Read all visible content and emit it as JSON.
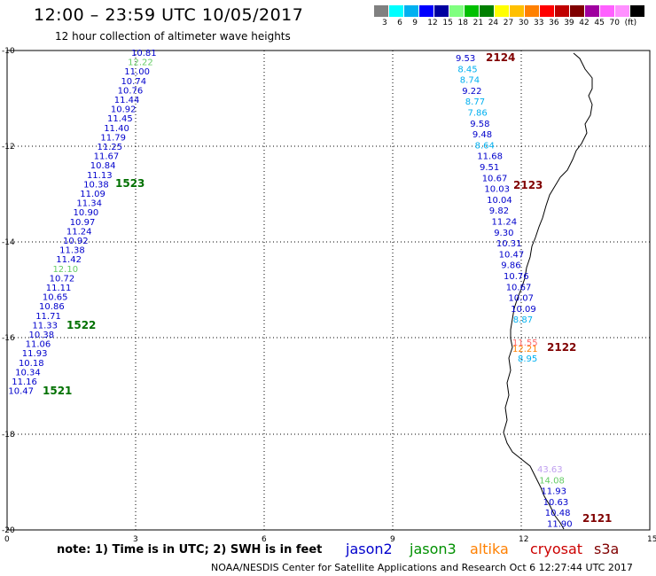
{
  "title": "12:00 – 23:59 UTC 10/05/2017",
  "subtitle": "12 hour collection of altimeter wave heights",
  "colorbar": {
    "colors": [
      "#808080",
      "#00ffff",
      "#00b0f0",
      "#0000ff",
      "#0000a0",
      "#80ff80",
      "#00c000",
      "#008000",
      "#ffff00",
      "#ffc000",
      "#ff8000",
      "#ff0000",
      "#c00000",
      "#800000",
      "#a000a0",
      "#ff60ff",
      "#ff90ff",
      "#000000"
    ],
    "labels": [
      "3",
      "6",
      "9",
      "12",
      "15",
      "18",
      "21",
      "24",
      "27",
      "30",
      "33",
      "36",
      "39",
      "42",
      "45",
      "70",
      "(ft)"
    ]
  },
  "axes": {
    "x_ticks": [
      "0",
      "3",
      "6",
      "9",
      "12",
      "15"
    ],
    "y_ticks": [
      "-10",
      "-12",
      "-14",
      "-16",
      "-18",
      "-20"
    ]
  },
  "track_west": [
    {
      "v": "10.81",
      "c": "#0000cc"
    },
    {
      "v": "12.22",
      "c": "#66cc66"
    },
    {
      "v": "11.00",
      "c": "#0000cc"
    },
    {
      "v": "10.74",
      "c": "#0000cc"
    },
    {
      "v": "10.76",
      "c": "#0000cc"
    },
    {
      "v": "11.44",
      "c": "#0000cc"
    },
    {
      "v": "10.92",
      "c": "#0000cc"
    },
    {
      "v": "11.45",
      "c": "#0000cc"
    },
    {
      "v": "11.40",
      "c": "#0000cc"
    },
    {
      "v": "11.79",
      "c": "#0000cc"
    },
    {
      "v": "11.25",
      "c": "#0000cc"
    },
    {
      "v": "11.67",
      "c": "#0000cc"
    },
    {
      "v": "10.84",
      "c": "#0000cc"
    },
    {
      "v": "11.13",
      "c": "#0000cc"
    },
    {
      "v": "10.38",
      "c": "#0000cc"
    },
    {
      "v": "11.09",
      "c": "#0000cc"
    },
    {
      "v": "11.34",
      "c": "#0000cc"
    },
    {
      "v": "10.90",
      "c": "#0000cc"
    },
    {
      "v": "10.97",
      "c": "#0000cc"
    },
    {
      "v": "11.24",
      "c": "#0000cc"
    },
    {
      "v": "10.92",
      "c": "#0000cc"
    },
    {
      "v": "11.38",
      "c": "#0000cc"
    },
    {
      "v": "11.42",
      "c": "#0000cc"
    },
    {
      "v": "12.10",
      "c": "#66cc66"
    },
    {
      "v": "10.72",
      "c": "#0000cc"
    },
    {
      "v": "11.11",
      "c": "#0000cc"
    },
    {
      "v": "10.65",
      "c": "#0000cc"
    },
    {
      "v": "10.86",
      "c": "#0000cc"
    },
    {
      "v": "11.71",
      "c": "#0000cc"
    },
    {
      "v": "11.33",
      "c": "#0000cc"
    },
    {
      "v": "10.38",
      "c": "#0000cc"
    },
    {
      "v": "11.06",
      "c": "#0000cc"
    },
    {
      "v": "11.93",
      "c": "#0000cc"
    },
    {
      "v": "10.18",
      "c": "#0000cc"
    },
    {
      "v": "10.34",
      "c": "#0000cc"
    },
    {
      "v": "11.16",
      "c": "#0000cc"
    },
    {
      "v": "10.47",
      "c": "#0000cc"
    }
  ],
  "track_east": [
    {
      "v": "9.53",
      "c": "#0000cc"
    },
    {
      "v": "8.45",
      "c": "#00b0f0"
    },
    {
      "v": "8.74",
      "c": "#00b0f0"
    },
    {
      "v": "9.22",
      "c": "#0000cc"
    },
    {
      "v": "8.77",
      "c": "#00b0f0"
    },
    {
      "v": "7.86",
      "c": "#00b0f0"
    },
    {
      "v": "9.58",
      "c": "#0000cc"
    },
    {
      "v": "9.48",
      "c": "#0000cc"
    },
    {
      "v": "8.64",
      "c": "#00b0f0"
    },
    {
      "v": "11.68",
      "c": "#0000cc"
    },
    {
      "v": "9.51",
      "c": "#0000cc"
    },
    {
      "v": "10.67",
      "c": "#0000cc"
    },
    {
      "v": "10.03",
      "c": "#0000cc"
    },
    {
      "v": "10.04",
      "c": "#0000cc"
    },
    {
      "v": "9.82",
      "c": "#0000cc"
    },
    {
      "v": "11.24",
      "c": "#0000cc"
    },
    {
      "v": "9.30",
      "c": "#0000cc"
    },
    {
      "v": "10.31",
      "c": "#0000cc"
    },
    {
      "v": "10.47",
      "c": "#0000cc"
    },
    {
      "v": "9.86",
      "c": "#0000cc"
    },
    {
      "v": "10.76",
      "c": "#0000cc"
    },
    {
      "v": "10.67",
      "c": "#0000cc"
    },
    {
      "v": "10.07",
      "c": "#0000cc"
    },
    {
      "v": "10.09",
      "c": "#0000cc"
    },
    {
      "v": "8.87",
      "c": "#00b0f0"
    }
  ],
  "track_east_mixed": [
    {
      "v": "11.55",
      "c": "#ff6666"
    },
    {
      "v": "12.21",
      "c": "#ff8000"
    },
    {
      "v": "8.95",
      "c": "#00b0f0"
    }
  ],
  "track_south": [
    {
      "v": "43.63",
      "c": "#c0a0f0"
    },
    {
      "v": "14.08",
      "c": "#66cc66"
    },
    {
      "v": "11.93",
      "c": "#0000cc"
    },
    {
      "v": "10.63",
      "c": "#0000cc"
    },
    {
      "v": "10.48",
      "c": "#0000cc"
    },
    {
      "v": "11.90",
      "c": "#0000cc"
    }
  ],
  "time_labels": [
    {
      "t": "2124",
      "c": "#800000"
    },
    {
      "t": "1523",
      "c": "#007000"
    },
    {
      "t": "2123",
      "c": "#800000"
    },
    {
      "t": "1522",
      "c": "#007000"
    },
    {
      "t": "2122",
      "c": "#800000"
    },
    {
      "t": "1521",
      "c": "#007000"
    },
    {
      "t": "2121",
      "c": "#800000"
    }
  ],
  "note": "note: 1) Time is in UTC; 2) SWH is in feet",
  "legend": [
    {
      "name": "jason2",
      "color": "#0000cc"
    },
    {
      "name": "jason3",
      "color": "#009000"
    },
    {
      "name": "altika",
      "color": "#ff8000"
    },
    {
      "name": "cryosat",
      "color": "#cc0000"
    },
    {
      "name": "s3a",
      "color": "#800000"
    }
  ],
  "footer": "NOAA/NESDIS Center for Satellite Applications and Research   Oct  6 12:27:44 UTC 2017"
}
